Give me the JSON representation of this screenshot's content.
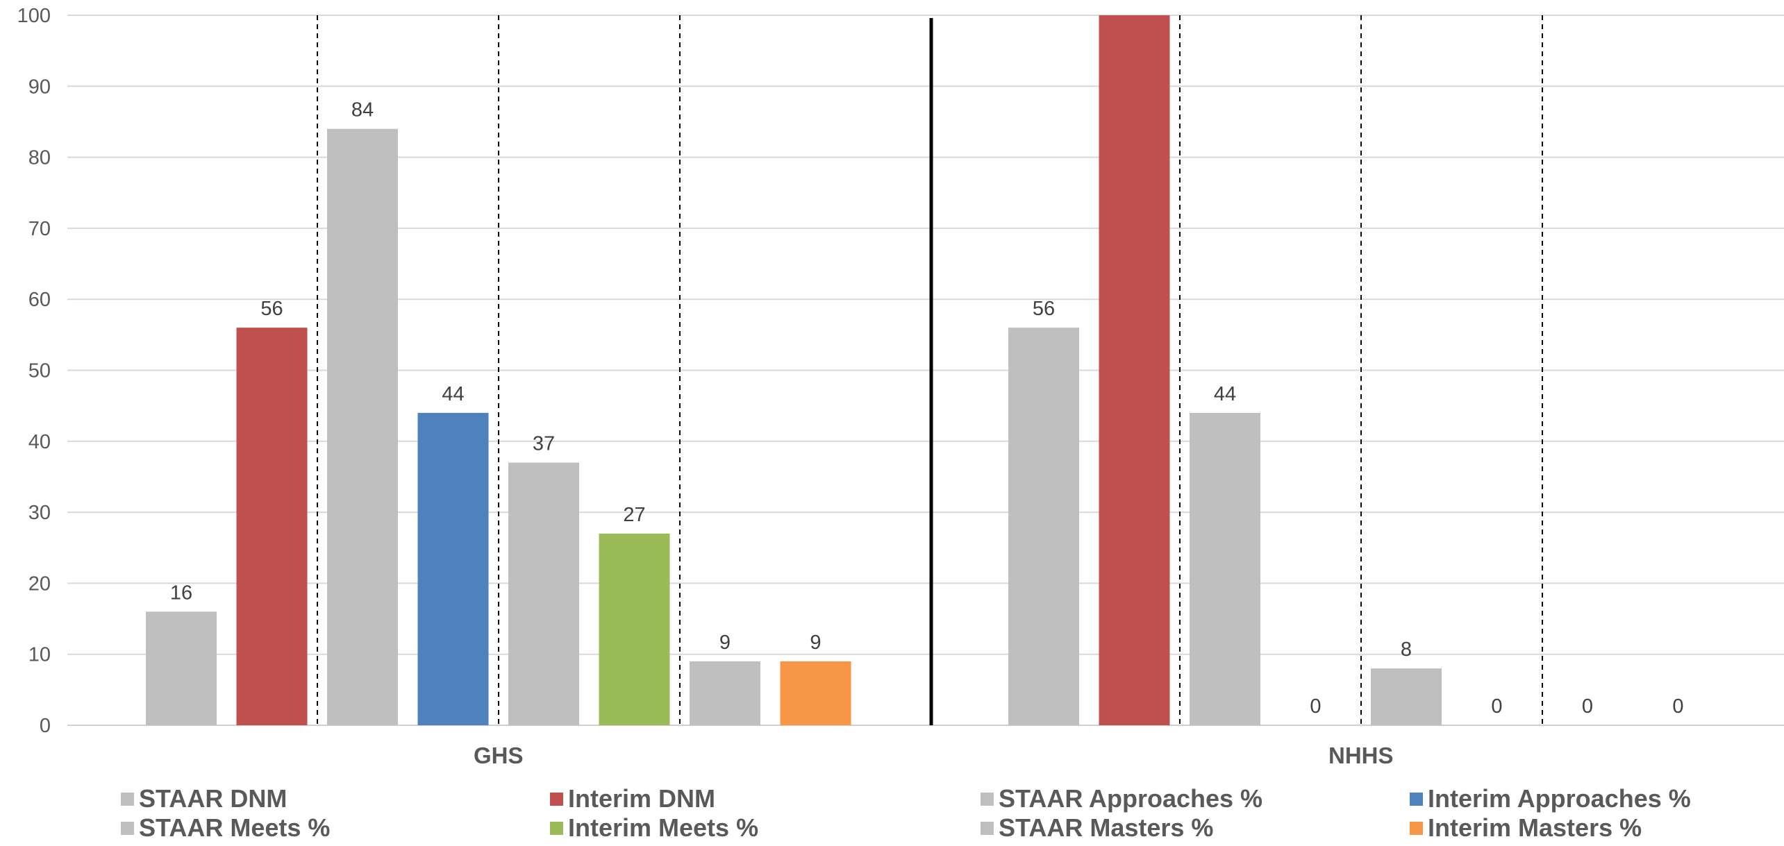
{
  "chart_data": {
    "type": "bar",
    "categories": [
      "GHS",
      "NHHS"
    ],
    "series": [
      {
        "name": "STAAR DNM",
        "values": [
          16,
          56
        ],
        "color": "#bfbfbf"
      },
      {
        "name": "Interim DNM",
        "values": [
          56,
          100
        ],
        "color": "#c0504d"
      },
      {
        "name": "STAAR Approaches %",
        "values": [
          84,
          44
        ],
        "color": "#bfbfbf"
      },
      {
        "name": "Interim Approaches %",
        "values": [
          44,
          0
        ],
        "color": "#4f81bd"
      },
      {
        "name": "STAAR Meets %",
        "values": [
          37,
          8
        ],
        "color": "#bfbfbf"
      },
      {
        "name": "Interim Meets %",
        "values": [
          27,
          0
        ],
        "color": "#9bbb59"
      },
      {
        "name": "STAAR Masters %",
        "values": [
          9,
          0
        ],
        "color": "#bfbfbf"
      },
      {
        "name": "Interim Masters %",
        "values": [
          9,
          0
        ],
        "color": "#f79646"
      }
    ],
    "data_labels": [
      [
        "16",
        "56",
        "84",
        "44",
        "37",
        "27",
        "9",
        "9"
      ],
      [
        "56",
        "",
        "44",
        "0",
        "8",
        "0",
        "0",
        "0"
      ]
    ],
    "yticks": [
      "0",
      "10",
      "20",
      "30",
      "40",
      "50",
      "60",
      "70",
      "80",
      "90",
      "100"
    ],
    "ylim": [
      0,
      100
    ],
    "grid": true,
    "legend_position": "bottom",
    "title": "",
    "xlabel": "",
    "ylabel": ""
  }
}
